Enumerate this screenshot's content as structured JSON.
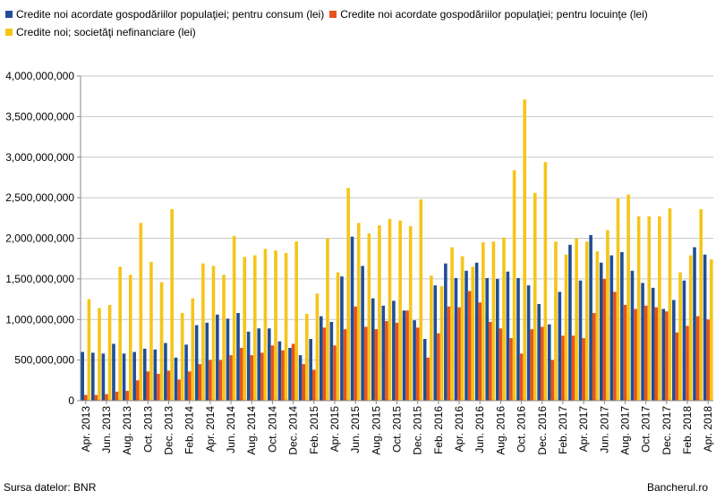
{
  "chart_data": {
    "type": "bar",
    "legend_position": "top",
    "grid": true,
    "ylim": [
      0,
      4000000000
    ],
    "yticks": [
      0,
      500000000,
      1000000000,
      1500000000,
      2000000000,
      2500000000,
      3000000000,
      3500000000,
      4000000000
    ],
    "ytick_labels": [
      "0",
      "500,000,000",
      "1,000,000,000",
      "1,500,000,000",
      "2,000,000,000",
      "2,500,000,000",
      "3,000,000,000",
      "3,500,000,000",
      "4,000,000,000"
    ],
    "categories": [
      "Apr. 2013",
      "May 2013",
      "Jun. 2013",
      "Jul. 2013",
      "Aug. 2013",
      "Sep. 2013",
      "Oct. 2013",
      "Nov. 2013",
      "Dec. 2013",
      "Jan. 2014",
      "Feb. 2014",
      "Mar. 2014",
      "Apr. 2014",
      "May 2014",
      "Jun. 2014",
      "Jul. 2014",
      "Aug. 2014",
      "Sep. 2014",
      "Oct. 2014",
      "Nov. 2014",
      "Dec. 2014",
      "Jan. 2015",
      "Feb. 2015",
      "Mar. 2015",
      "Apr. 2015",
      "May 2015",
      "Jun. 2015",
      "Jul. 2015",
      "Aug. 2015",
      "Sep. 2015",
      "Oct. 2015",
      "Nov. 2015",
      "Dec. 2015",
      "Jan. 2016",
      "Feb. 2016",
      "Mar. 2016",
      "Apr. 2016",
      "May 2016",
      "Jun. 2016",
      "Jul. 2016",
      "Aug. 2016",
      "Sep. 2016",
      "Oct. 2016",
      "Nov. 2016",
      "Dec. 2016",
      "Jan. 2017",
      "Feb. 2017",
      "Mar. 2017",
      "Apr. 2017",
      "May 2017",
      "Jun. 2017",
      "Jul. 2017",
      "Aug. 2017",
      "Sep. 2017",
      "Oct. 2017",
      "Nov. 2017",
      "Dec. 2017",
      "Jan. 2018",
      "Feb. 2018",
      "Mar. 2018",
      "Apr. 2018"
    ],
    "visible_tick_labels": [
      "Apr. 2013",
      "Jun. 2013",
      "Aug. 2013",
      "Oct. 2013",
      "Dec. 2013",
      "Feb. 2014",
      "Apr. 2014",
      "Jun. 2014",
      "Aug. 2014",
      "Oct. 2014",
      "Dec. 2014",
      "Feb. 2015",
      "Apr. 2015",
      "Jun. 2015",
      "Aug. 2015",
      "Oct. 2015",
      "Dec. 2015",
      "Feb. 2016",
      "Apr. 2016",
      "Jun. 2016",
      "Aug. 2016",
      "Oct. 2016",
      "Dec. 2016",
      "Feb. 2017",
      "Apr. 2017",
      "Jun. 2017",
      "Aug. 2017",
      "Oct. 2017",
      "Dec. 2017",
      "Feb. 2018",
      "Apr. 2018"
    ],
    "series": [
      {
        "name": "Credite noi acordate gospodăriilor populaţiei; pentru consum (lei)",
        "color": "#1f4e96",
        "values": [
          600000000,
          590000000,
          580000000,
          700000000,
          580000000,
          600000000,
          640000000,
          630000000,
          710000000,
          530000000,
          690000000,
          930000000,
          960000000,
          1060000000,
          1010000000,
          1080000000,
          850000000,
          890000000,
          890000000,
          730000000,
          650000000,
          560000000,
          760000000,
          1040000000,
          970000000,
          1530000000,
          2020000000,
          1660000000,
          1260000000,
          1170000000,
          1230000000,
          1110000000,
          990000000,
          760000000,
          1420000000,
          1690000000,
          1510000000,
          1600000000,
          1700000000,
          1510000000,
          1500000000,
          1590000000,
          1510000000,
          1420000000,
          1190000000,
          940000000,
          1340000000,
          1920000000,
          1480000000,
          2040000000,
          1700000000,
          1790000000,
          1830000000,
          1600000000,
          1450000000,
          1390000000,
          1130000000,
          1240000000,
          1480000000,
          1890000000,
          1800000000
        ]
      },
      {
        "name": "Credite noi acordate gospodăriilor populaţiei; pentru locuinţe (lei)",
        "color": "#e8541c",
        "values": [
          70000000,
          70000000,
          80000000,
          110000000,
          120000000,
          250000000,
          360000000,
          330000000,
          370000000,
          260000000,
          360000000,
          450000000,
          500000000,
          500000000,
          560000000,
          650000000,
          560000000,
          590000000,
          680000000,
          620000000,
          700000000,
          450000000,
          380000000,
          900000000,
          680000000,
          880000000,
          1160000000,
          910000000,
          880000000,
          980000000,
          960000000,
          1110000000,
          900000000,
          530000000,
          830000000,
          1160000000,
          1150000000,
          1350000000,
          1210000000,
          970000000,
          890000000,
          770000000,
          580000000,
          880000000,
          910000000,
          500000000,
          800000000,
          800000000,
          770000000,
          1080000000,
          1500000000,
          1340000000,
          1180000000,
          1130000000,
          1170000000,
          1150000000,
          1100000000,
          840000000,
          920000000,
          1040000000,
          1000000000
        ]
      },
      {
        "name": "Credite noi; societăţi nefinanciare (lei)",
        "color": "#f5c518",
        "values": [
          1250000000,
          1140000000,
          1180000000,
          1650000000,
          1550000000,
          2190000000,
          1710000000,
          1460000000,
          2360000000,
          1080000000,
          1260000000,
          1690000000,
          1660000000,
          1550000000,
          2030000000,
          1770000000,
          1790000000,
          1870000000,
          1850000000,
          1820000000,
          1960000000,
          1070000000,
          1320000000,
          2000000000,
          1580000000,
          2620000000,
          2190000000,
          2060000000,
          2160000000,
          2240000000,
          2220000000,
          2150000000,
          2480000000,
          1540000000,
          1410000000,
          1890000000,
          1780000000,
          1650000000,
          1950000000,
          1960000000,
          2010000000,
          2840000000,
          3710000000,
          2560000000,
          2940000000,
          1960000000,
          1800000000,
          2000000000,
          1960000000,
          1840000000,
          2100000000,
          2490000000,
          2540000000,
          2270000000,
          2270000000,
          2270000000,
          2370000000,
          1580000000,
          1790000000,
          2360000000,
          1740000000
        ]
      }
    ]
  },
  "footer": {
    "source": "Sursa datelor: BNR",
    "credit": "Bancherul.ro"
  }
}
